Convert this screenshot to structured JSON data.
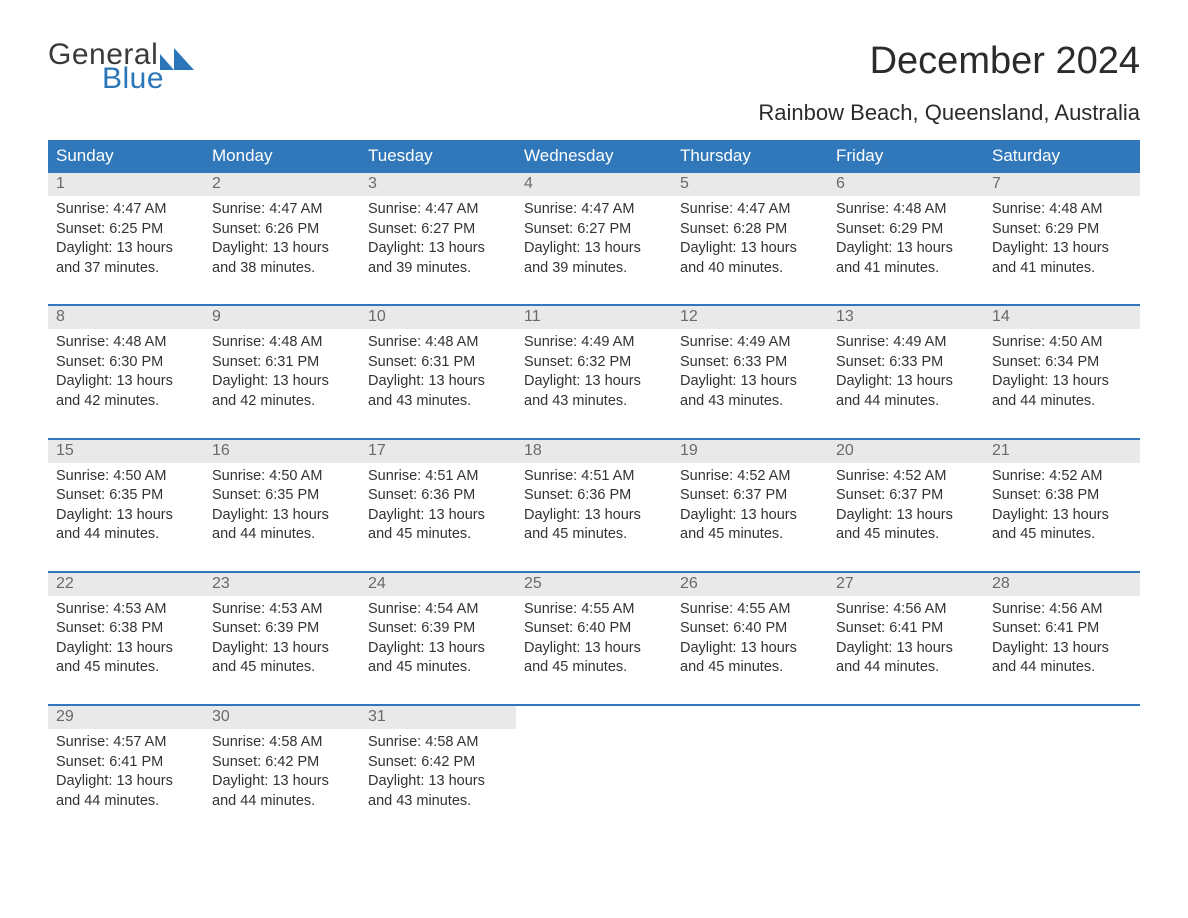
{
  "logo": {
    "word1": "General",
    "word2": "Blue",
    "word1_color": "#3a3a3a",
    "word2_color": "#2a76b8",
    "mark_color": "#2a76b8"
  },
  "title": "December 2024",
  "location": "Rainbow Beach, Queensland, Australia",
  "colors": {
    "header_bg": "#3178ba",
    "header_text": "#ffffff",
    "daynum_bg": "#e9e9e9",
    "daynum_text": "#6a6a6a",
    "week_border": "#3178ba",
    "body_text": "#333333",
    "page_bg": "#ffffff"
  },
  "typography": {
    "title_fontsize": 38,
    "location_fontsize": 22,
    "weekday_fontsize": 17,
    "daynum_fontsize": 16,
    "body_fontsize": 14.5,
    "font_family": "Arial"
  },
  "layout": {
    "columns": 7,
    "rows": 5
  },
  "weekdays": [
    "Sunday",
    "Monday",
    "Tuesday",
    "Wednesday",
    "Thursday",
    "Friday",
    "Saturday"
  ],
  "weeks": [
    [
      {
        "day": "1",
        "sunrise": "Sunrise: 4:47 AM",
        "sunset": "Sunset: 6:25 PM",
        "daylight1": "Daylight: 13 hours",
        "daylight2": "and 37 minutes."
      },
      {
        "day": "2",
        "sunrise": "Sunrise: 4:47 AM",
        "sunset": "Sunset: 6:26 PM",
        "daylight1": "Daylight: 13 hours",
        "daylight2": "and 38 minutes."
      },
      {
        "day": "3",
        "sunrise": "Sunrise: 4:47 AM",
        "sunset": "Sunset: 6:27 PM",
        "daylight1": "Daylight: 13 hours",
        "daylight2": "and 39 minutes."
      },
      {
        "day": "4",
        "sunrise": "Sunrise: 4:47 AM",
        "sunset": "Sunset: 6:27 PM",
        "daylight1": "Daylight: 13 hours",
        "daylight2": "and 39 minutes."
      },
      {
        "day": "5",
        "sunrise": "Sunrise: 4:47 AM",
        "sunset": "Sunset: 6:28 PM",
        "daylight1": "Daylight: 13 hours",
        "daylight2": "and 40 minutes."
      },
      {
        "day": "6",
        "sunrise": "Sunrise: 4:48 AM",
        "sunset": "Sunset: 6:29 PM",
        "daylight1": "Daylight: 13 hours",
        "daylight2": "and 41 minutes."
      },
      {
        "day": "7",
        "sunrise": "Sunrise: 4:48 AM",
        "sunset": "Sunset: 6:29 PM",
        "daylight1": "Daylight: 13 hours",
        "daylight2": "and 41 minutes."
      }
    ],
    [
      {
        "day": "8",
        "sunrise": "Sunrise: 4:48 AM",
        "sunset": "Sunset: 6:30 PM",
        "daylight1": "Daylight: 13 hours",
        "daylight2": "and 42 minutes."
      },
      {
        "day": "9",
        "sunrise": "Sunrise: 4:48 AM",
        "sunset": "Sunset: 6:31 PM",
        "daylight1": "Daylight: 13 hours",
        "daylight2": "and 42 minutes."
      },
      {
        "day": "10",
        "sunrise": "Sunrise: 4:48 AM",
        "sunset": "Sunset: 6:31 PM",
        "daylight1": "Daylight: 13 hours",
        "daylight2": "and 43 minutes."
      },
      {
        "day": "11",
        "sunrise": "Sunrise: 4:49 AM",
        "sunset": "Sunset: 6:32 PM",
        "daylight1": "Daylight: 13 hours",
        "daylight2": "and 43 minutes."
      },
      {
        "day": "12",
        "sunrise": "Sunrise: 4:49 AM",
        "sunset": "Sunset: 6:33 PM",
        "daylight1": "Daylight: 13 hours",
        "daylight2": "and 43 minutes."
      },
      {
        "day": "13",
        "sunrise": "Sunrise: 4:49 AM",
        "sunset": "Sunset: 6:33 PM",
        "daylight1": "Daylight: 13 hours",
        "daylight2": "and 44 minutes."
      },
      {
        "day": "14",
        "sunrise": "Sunrise: 4:50 AM",
        "sunset": "Sunset: 6:34 PM",
        "daylight1": "Daylight: 13 hours",
        "daylight2": "and 44 minutes."
      }
    ],
    [
      {
        "day": "15",
        "sunrise": "Sunrise: 4:50 AM",
        "sunset": "Sunset: 6:35 PM",
        "daylight1": "Daylight: 13 hours",
        "daylight2": "and 44 minutes."
      },
      {
        "day": "16",
        "sunrise": "Sunrise: 4:50 AM",
        "sunset": "Sunset: 6:35 PM",
        "daylight1": "Daylight: 13 hours",
        "daylight2": "and 44 minutes."
      },
      {
        "day": "17",
        "sunrise": "Sunrise: 4:51 AM",
        "sunset": "Sunset: 6:36 PM",
        "daylight1": "Daylight: 13 hours",
        "daylight2": "and 45 minutes."
      },
      {
        "day": "18",
        "sunrise": "Sunrise: 4:51 AM",
        "sunset": "Sunset: 6:36 PM",
        "daylight1": "Daylight: 13 hours",
        "daylight2": "and 45 minutes."
      },
      {
        "day": "19",
        "sunrise": "Sunrise: 4:52 AM",
        "sunset": "Sunset: 6:37 PM",
        "daylight1": "Daylight: 13 hours",
        "daylight2": "and 45 minutes."
      },
      {
        "day": "20",
        "sunrise": "Sunrise: 4:52 AM",
        "sunset": "Sunset: 6:37 PM",
        "daylight1": "Daylight: 13 hours",
        "daylight2": "and 45 minutes."
      },
      {
        "day": "21",
        "sunrise": "Sunrise: 4:52 AM",
        "sunset": "Sunset: 6:38 PM",
        "daylight1": "Daylight: 13 hours",
        "daylight2": "and 45 minutes."
      }
    ],
    [
      {
        "day": "22",
        "sunrise": "Sunrise: 4:53 AM",
        "sunset": "Sunset: 6:38 PM",
        "daylight1": "Daylight: 13 hours",
        "daylight2": "and 45 minutes."
      },
      {
        "day": "23",
        "sunrise": "Sunrise: 4:53 AM",
        "sunset": "Sunset: 6:39 PM",
        "daylight1": "Daylight: 13 hours",
        "daylight2": "and 45 minutes."
      },
      {
        "day": "24",
        "sunrise": "Sunrise: 4:54 AM",
        "sunset": "Sunset: 6:39 PM",
        "daylight1": "Daylight: 13 hours",
        "daylight2": "and 45 minutes."
      },
      {
        "day": "25",
        "sunrise": "Sunrise: 4:55 AM",
        "sunset": "Sunset: 6:40 PM",
        "daylight1": "Daylight: 13 hours",
        "daylight2": "and 45 minutes."
      },
      {
        "day": "26",
        "sunrise": "Sunrise: 4:55 AM",
        "sunset": "Sunset: 6:40 PM",
        "daylight1": "Daylight: 13 hours",
        "daylight2": "and 45 minutes."
      },
      {
        "day": "27",
        "sunrise": "Sunrise: 4:56 AM",
        "sunset": "Sunset: 6:41 PM",
        "daylight1": "Daylight: 13 hours",
        "daylight2": "and 44 minutes."
      },
      {
        "day": "28",
        "sunrise": "Sunrise: 4:56 AM",
        "sunset": "Sunset: 6:41 PM",
        "daylight1": "Daylight: 13 hours",
        "daylight2": "and 44 minutes."
      }
    ],
    [
      {
        "day": "29",
        "sunrise": "Sunrise: 4:57 AM",
        "sunset": "Sunset: 6:41 PM",
        "daylight1": "Daylight: 13 hours",
        "daylight2": "and 44 minutes."
      },
      {
        "day": "30",
        "sunrise": "Sunrise: 4:58 AM",
        "sunset": "Sunset: 6:42 PM",
        "daylight1": "Daylight: 13 hours",
        "daylight2": "and 44 minutes."
      },
      {
        "day": "31",
        "sunrise": "Sunrise: 4:58 AM",
        "sunset": "Sunset: 6:42 PM",
        "daylight1": "Daylight: 13 hours",
        "daylight2": "and 43 minutes."
      },
      null,
      null,
      null,
      null
    ]
  ]
}
